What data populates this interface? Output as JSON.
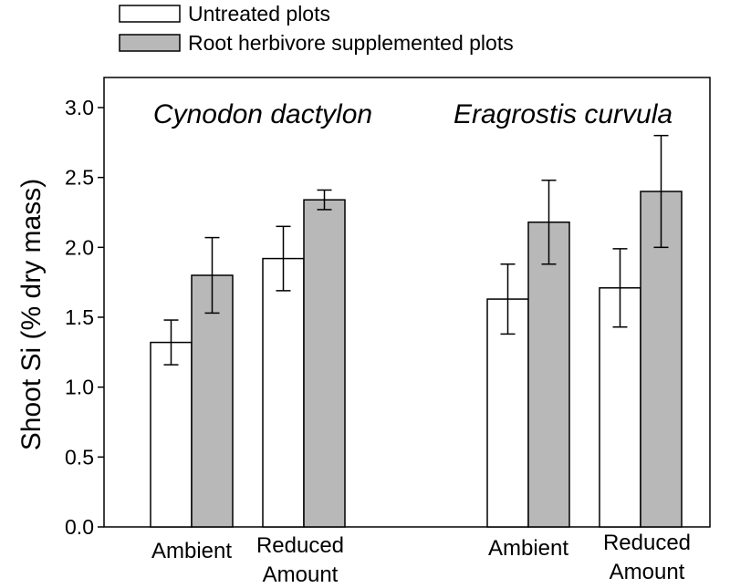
{
  "chart_data": {
    "type": "bar",
    "ylabel": "Shoot Si (% dry mass)",
    "ylim": [
      0,
      3.2
    ],
    "yticks": [
      "0.0",
      "0.5",
      "1.0",
      "1.5",
      "2.0",
      "2.5",
      "3.0"
    ],
    "legend": [
      {
        "name": "Untreated plots",
        "color": "#ffffff"
      },
      {
        "name": "Root herbivore supplemented plots",
        "color": "#b8b8b8"
      }
    ],
    "panels": [
      {
        "species": "Cynodon dactylon",
        "groups": [
          {
            "label_lines": [
              "Ambient"
            ],
            "values": [
              1.32,
              1.8
            ],
            "errors": [
              0.16,
              0.27
            ]
          },
          {
            "label_lines": [
              "Reduced",
              "Amount"
            ],
            "values": [
              1.92,
              2.34
            ],
            "errors": [
              0.23,
              0.07
            ]
          }
        ]
      },
      {
        "species": "Eragrostis curvula",
        "groups": [
          {
            "label_lines": [
              "Ambient"
            ],
            "values": [
              1.63,
              2.18
            ],
            "errors": [
              0.25,
              0.3
            ]
          },
          {
            "label_lines": [
              "Reduced",
              "Amount"
            ],
            "values": [
              1.71,
              2.4
            ],
            "errors": [
              0.28,
              0.4
            ]
          }
        ]
      }
    ]
  }
}
